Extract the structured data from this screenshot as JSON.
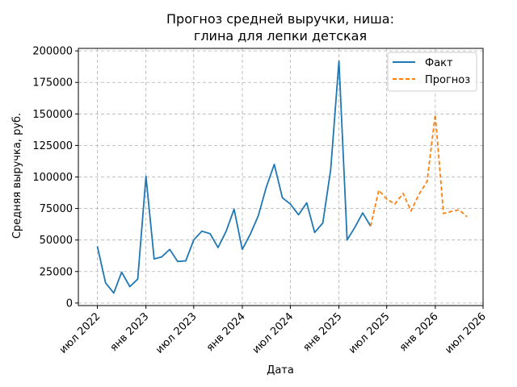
{
  "chart_data": {
    "type": "line",
    "title": [
      "Прогноз средней выручки, ниша:",
      "глина для лепки детская"
    ],
    "xlabel": "Дата",
    "ylabel": "Средняя выручка, руб.",
    "x_ticks": [
      {
        "date": "2022-07-01",
        "label": "июл 2022"
      },
      {
        "date": "2023-01-01",
        "label": "янв 2023"
      },
      {
        "date": "2023-07-01",
        "label": "июл 2023"
      },
      {
        "date": "2024-01-01",
        "label": "янв 2024"
      },
      {
        "date": "2024-07-01",
        "label": "июл 2024"
      },
      {
        "date": "2025-01-01",
        "label": "янв 2025"
      },
      {
        "date": "2025-07-01",
        "label": "июл 2025"
      },
      {
        "date": "2026-01-01",
        "label": "янв 2026"
      },
      {
        "date": "2026-07-01",
        "label": "июл 2026"
      }
    ],
    "y_ticks": [
      0,
      25000,
      50000,
      75000,
      100000,
      125000,
      150000,
      175000,
      200000
    ],
    "ylim": [
      -2000,
      202000
    ],
    "xlim": [
      "2022-04-20",
      "2026-07-01"
    ],
    "grid": true,
    "legend_position": "top-right",
    "series": [
      {
        "name": "Факт",
        "style": "solid",
        "color": "#1f77b4",
        "x": [
          "2022-07-01",
          "2022-08-01",
          "2022-09-01",
          "2022-10-01",
          "2022-11-01",
          "2022-12-01",
          "2023-01-01",
          "2023-02-01",
          "2023-03-01",
          "2023-04-01",
          "2023-05-01",
          "2023-06-01",
          "2023-07-01",
          "2023-08-01",
          "2023-09-01",
          "2023-10-01",
          "2023-11-01",
          "2023-12-01",
          "2024-01-01",
          "2024-02-01",
          "2024-03-01",
          "2024-04-01",
          "2024-05-01",
          "2024-06-01",
          "2024-07-01",
          "2024-08-01",
          "2024-09-01",
          "2024-10-01",
          "2024-11-01",
          "2024-12-01",
          "2025-01-01",
          "2025-02-01",
          "2025-03-01",
          "2025-04-01",
          "2025-05-01"
        ],
        "y": [
          45000,
          16000,
          8000,
          24500,
          13000,
          19000,
          100500,
          35000,
          36500,
          42500,
          33000,
          33500,
          50000,
          57000,
          55000,
          44000,
          57000,
          74500,
          42500,
          55000,
          69000,
          92000,
          110000,
          83500,
          78500,
          70000,
          79500,
          56000,
          63500,
          106000,
          192000,
          50000,
          59500,
          71500,
          61000
        ]
      },
      {
        "name": "Прогноз",
        "style": "dashed",
        "color": "#ff7f0e",
        "x": [
          "2025-05-01",
          "2025-06-01",
          "2025-07-01",
          "2025-08-01",
          "2025-09-01",
          "2025-10-01",
          "2025-11-01",
          "2025-12-01",
          "2026-01-01",
          "2026-02-01",
          "2026-03-01",
          "2026-04-01",
          "2026-05-01"
        ],
        "y": [
          61000,
          89500,
          82500,
          78500,
          87000,
          73000,
          86500,
          96500,
          149500,
          71000,
          72500,
          74000,
          68500
        ]
      }
    ]
  },
  "colors": {
    "grid": "#b0b0b0",
    "axes": "#000000"
  }
}
